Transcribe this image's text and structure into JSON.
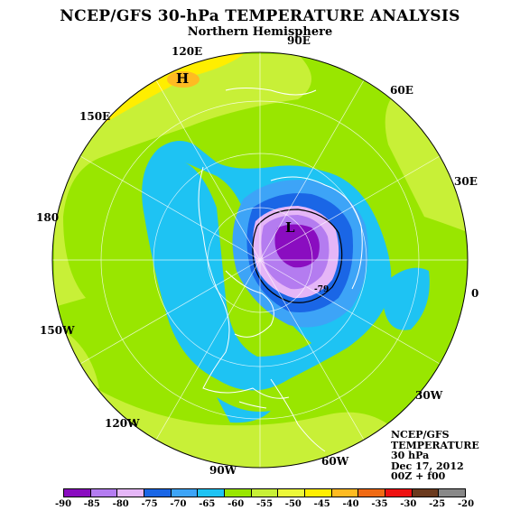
{
  "title": "NCEP/GFS 30-hPa TEMPERATURE ANALYSIS",
  "subtitle": "Northern Hemisphere",
  "longitude_labels": [
    "120E",
    "90E",
    "60E",
    "150E",
    "30E",
    "180",
    "0",
    "150W",
    "30W",
    "120W",
    "90W",
    "60W"
  ],
  "info_lines": [
    "NCEP/GFS",
    "TEMPERATURE",
    "30 hPa",
    "Dec 17, 2012",
    "00Z + f00"
  ],
  "high_label": "H",
  "low_label": "L",
  "contour_label": "-79",
  "legend": {
    "colors": [
      "#8a0dc0",
      "#b47cf0",
      "#e5b6f7",
      "#1a66e6",
      "#3da4f7",
      "#1ec3f3",
      "#99e600",
      "#c8f037",
      "#ecf839",
      "#ffee00",
      "#ffbb22",
      "#f06a14",
      "#ee1111",
      "#6b3a1e",
      "#888888"
    ],
    "ticks": [
      "-90",
      "-85",
      "-80",
      "-75",
      "-70",
      "-65",
      "-60",
      "-55",
      "-50",
      "-45",
      "-40",
      "-35",
      "-30",
      "-25",
      "-20"
    ]
  }
}
